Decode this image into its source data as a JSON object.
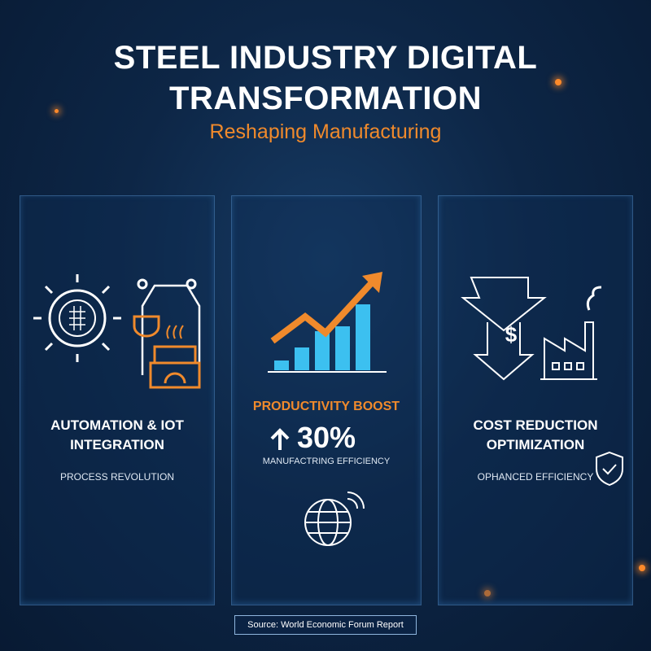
{
  "header": {
    "title": "STEEL INDUSTRY DIGITAL TRANSFORMATION",
    "subtitle": "Reshaping Manufacturing"
  },
  "cards": [
    {
      "title": "AUTOMATION & IOT INTEGRATION",
      "caption": "PROCESS REVOLUTION"
    },
    {
      "title": "PRODUCTIVITY BOOST",
      "stat": "30%",
      "caption": "MANUFACTRING EFFICIENCY"
    },
    {
      "title": "COST REDUCTION OPTIMIZATION",
      "caption": "OPHANCED EFFICIENCY",
      "icon_text": "$"
    }
  ],
  "footer": {
    "source": "Source: World Economic Forum Report"
  }
}
